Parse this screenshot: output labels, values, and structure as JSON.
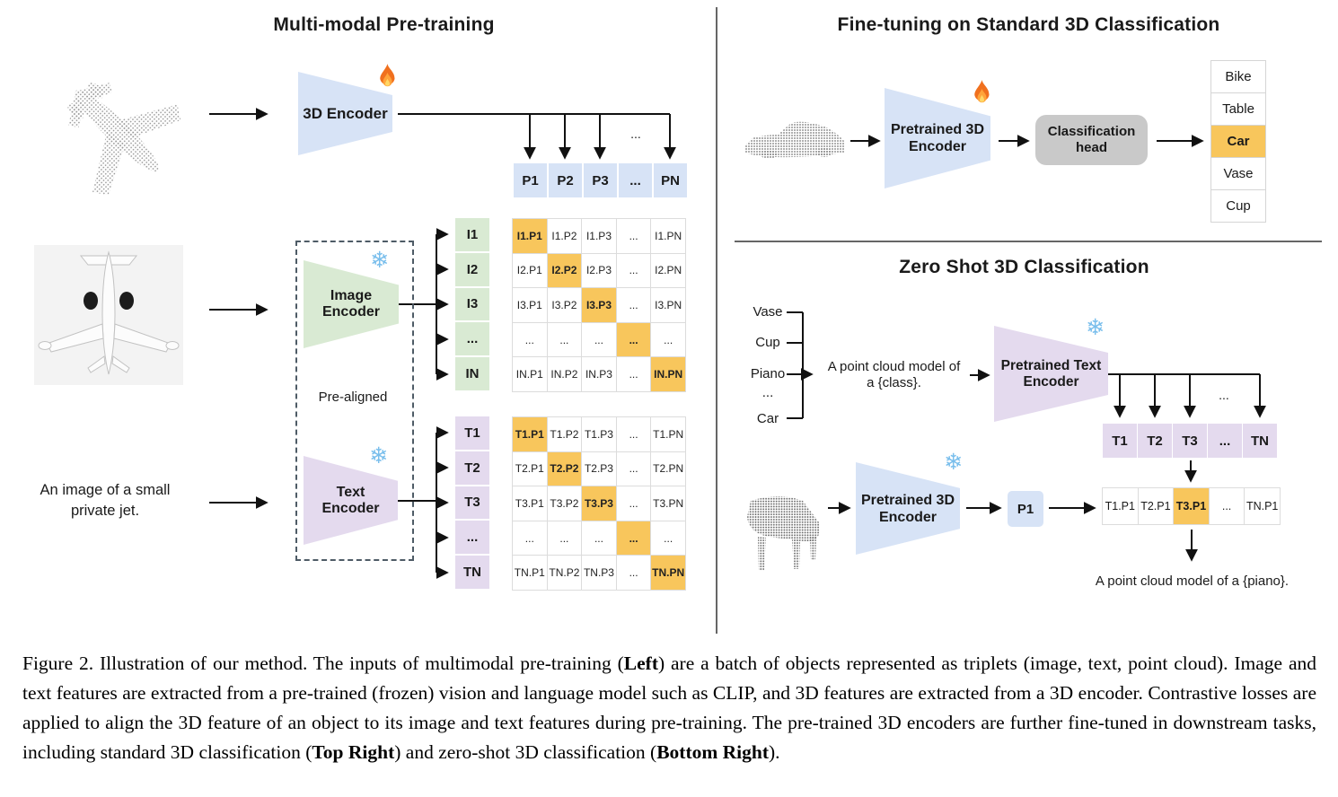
{
  "colors": {
    "blue": "#D7E3F6",
    "green": "#D9EAD3",
    "purple": "#E4DAEE",
    "highlight": "#F8C65C",
    "head_gray": "#C9C9C9"
  },
  "icons": {
    "snowflake_glyph": "❄",
    "trainable": "fire-icon",
    "frozen": "snowflake-icon"
  },
  "left_panel": {
    "title": "Multi-modal Pre-training",
    "encoder_3d_label": "3D Encoder",
    "image_encoder_line1": "Image",
    "image_encoder_line2": "Encoder",
    "text_encoder_line1": "Text",
    "text_encoder_line2": "Encoder",
    "pre_aligned_label": "Pre-aligned",
    "text_input": "An image of a small private jet.",
    "p_row": [
      "P1",
      "P2",
      "P3",
      "...",
      "PN"
    ],
    "p_row_ellipsis": "...",
    "i_column": [
      "I1",
      "I2",
      "I3",
      "...",
      "IN"
    ],
    "t_column": [
      "T1",
      "T2",
      "T3",
      "...",
      "TN"
    ],
    "image_matrix": [
      [
        "I1.P1",
        "I1.P2",
        "I1.P3",
        "...",
        "I1.PN"
      ],
      [
        "I2.P1",
        "I2.P2",
        "I2.P3",
        "...",
        "I2.PN"
      ],
      [
        "I3.P1",
        "I3.P2",
        "I3.P3",
        "...",
        "I3.PN"
      ],
      [
        "...",
        "...",
        "...",
        "...",
        "..."
      ],
      [
        "IN.P1",
        "IN.P2",
        "IN.P3",
        "...",
        "IN.PN"
      ]
    ],
    "text_matrix": [
      [
        "T1.P1",
        "T1.P2",
        "T1.P3",
        "...",
        "T1.PN"
      ],
      [
        "T2.P1",
        "T2.P2",
        "T2.P3",
        "...",
        "T2.PN"
      ],
      [
        "T3.P1",
        "T3.P2",
        "T3.P3",
        "...",
        "T3.PN"
      ],
      [
        "...",
        "...",
        "...",
        "...",
        "..."
      ],
      [
        "TN.P1",
        "TN.P2",
        "TN.P3",
        "...",
        "TN.PN"
      ]
    ]
  },
  "fine_tuning": {
    "title": "Fine-tuning on Standard 3D Classification",
    "encoder_line1": "Pretrained 3D",
    "encoder_line2": "Encoder",
    "head_line1": "Classification",
    "head_line2": "head",
    "classes": [
      "Bike",
      "Table",
      "Car",
      "Vase",
      "Cup"
    ],
    "highlight_index": 2
  },
  "zero_shot": {
    "title": "Zero Shot 3D Classification",
    "class_list": [
      "Vase",
      "Cup",
      "Piano",
      "...",
      "Car"
    ],
    "prompt_line1": "A point cloud model of",
    "prompt_line2": "a {class}.",
    "text_encoder_line1": "Pretrained Text",
    "text_encoder_line2": "Encoder",
    "t_row": [
      "T1",
      "T2",
      "T3",
      "...",
      "TN"
    ],
    "t_row_ellipsis": "...",
    "encoder_3d_line1": "Pretrained 3D",
    "encoder_3d_line2": "Encoder",
    "p1_label": "P1",
    "tp_row": [
      "T1.P1",
      "T2.P1",
      "T3.P1",
      "...",
      "TN.P1"
    ],
    "tp_highlight_index": 2,
    "output_text": "A point cloud model of a {piano}."
  },
  "caption": {
    "segments": [
      {
        "t": "Figure 2. Illustration of our method. The inputs of multimodal pre-training (",
        "b": false
      },
      {
        "t": "Left",
        "b": true
      },
      {
        "t": ") are a batch of objects represented as triplets (image, text, point cloud).  Image and text features are extracted from a pre-trained (frozen) vision and language model such as CLIP, and 3D features are extracted from a 3D encoder.  Contrastive losses are applied to align the 3D feature of an object to its image and text features during pre-training.  The pre-trained 3D encoders are further fine-tuned in downstream tasks, including standard 3D classification (",
        "b": false
      },
      {
        "t": "Top Right",
        "b": true
      },
      {
        "t": ") and zero-shot 3D classification (",
        "b": false
      },
      {
        "t": "Bottom Right",
        "b": true
      },
      {
        "t": ").",
        "b": false
      }
    ]
  }
}
